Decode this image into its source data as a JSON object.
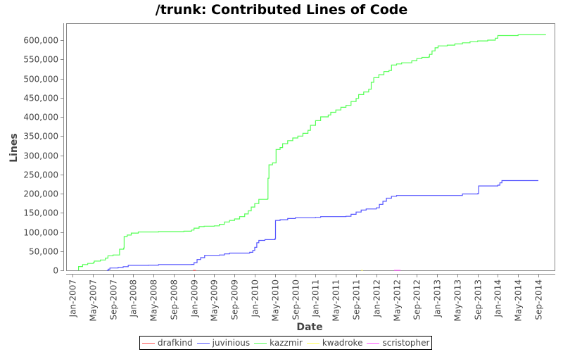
{
  "chart_data": {
    "type": "line",
    "title": "/trunk: Contributed Lines of Code",
    "xlabel": "Date",
    "ylabel": "Lines",
    "ylim": [
      0,
      640000
    ],
    "y_ticks": [
      0,
      50000,
      100000,
      150000,
      200000,
      250000,
      300000,
      350000,
      400000,
      450000,
      500000,
      550000,
      600000
    ],
    "y_tick_labels": [
      "0",
      "50,000",
      "100,000",
      "150,000",
      "200,000",
      "250,000",
      "300,000",
      "350,000",
      "400,000",
      "450,000",
      "500,000",
      "550,000",
      "600,000"
    ],
    "x_ticks": [
      "Jan-2007",
      "May-2007",
      "Sep-2007",
      "Jan-2008",
      "May-2008",
      "Sep-2008",
      "Jan-2009",
      "May-2009",
      "Sep-2009",
      "Jan-2010",
      "May-2010",
      "Sep-2010",
      "Jan-2011",
      "May-2011",
      "Sep-2011",
      "Jan-2012",
      "May-2012",
      "Sep-2012",
      "Jan-2013",
      "May-2013",
      "Sep-2013",
      "Jan-2014",
      "May-2014",
      "Sep-2014"
    ],
    "x_unit": "months since Jan-2007",
    "grid": false,
    "legend_position": "bottom",
    "series": [
      {
        "name": "drafkind",
        "color": "#ff5555",
        "points": [
          [
            23.8,
            0
          ],
          [
            24.3,
            300
          ]
        ]
      },
      {
        "name": "juvinious",
        "color": "#5555ff",
        "points": [
          [
            6.8,
            0
          ],
          [
            7.1,
            3000
          ],
          [
            7.4,
            6000
          ],
          [
            9.0,
            7500
          ],
          [
            10.0,
            9500
          ],
          [
            11.0,
            13000
          ],
          [
            15.0,
            13500
          ],
          [
            17.0,
            15000
          ],
          [
            23.5,
            15500
          ],
          [
            24.0,
            20000
          ],
          [
            24.6,
            28000
          ],
          [
            25.3,
            33000
          ],
          [
            26.1,
            39000
          ],
          [
            29.0,
            40000
          ],
          [
            30.0,
            43000
          ],
          [
            31.0,
            45000
          ],
          [
            35.0,
            47000
          ],
          [
            35.6,
            52000
          ],
          [
            36.0,
            60000
          ],
          [
            36.4,
            72000
          ],
          [
            36.8,
            78000
          ],
          [
            38.0,
            80000
          ],
          [
            40.0,
            83000
          ],
          [
            40.1,
            130000
          ],
          [
            41.0,
            132000
          ],
          [
            42.5,
            135000
          ],
          [
            44.0,
            137000
          ],
          [
            48.0,
            138000
          ],
          [
            49.0,
            140000
          ],
          [
            54.0,
            141000
          ],
          [
            55.0,
            146000
          ],
          [
            56.0,
            152000
          ],
          [
            57.0,
            157000
          ],
          [
            58.0,
            160000
          ],
          [
            60.0,
            163000
          ],
          [
            60.6,
            172000
          ],
          [
            61.3,
            180000
          ],
          [
            62.0,
            188000
          ],
          [
            63.0,
            193000
          ],
          [
            64.0,
            195000
          ],
          [
            76.0,
            195000
          ],
          [
            77.0,
            199000
          ],
          [
            80.0,
            200000
          ],
          [
            80.2,
            220000
          ],
          [
            84.0,
            222000
          ],
          [
            84.4,
            228000
          ],
          [
            84.8,
            234000
          ],
          [
            92.0,
            234000
          ]
        ]
      },
      {
        "name": "kazzmir",
        "color": "#55ff55",
        "points": [
          [
            1.2,
            0
          ],
          [
            1.2,
            10000
          ],
          [
            2.0,
            15000
          ],
          [
            3.0,
            18000
          ],
          [
            4.1,
            20000
          ],
          [
            4.3,
            24000
          ],
          [
            5.5,
            27000
          ],
          [
            6.5,
            32000
          ],
          [
            7.0,
            38000
          ],
          [
            8.0,
            40000
          ],
          [
            9.3,
            43000
          ],
          [
            9.3,
            55000
          ],
          [
            10.1,
            58000
          ],
          [
            10.2,
            88000
          ],
          [
            10.8,
            92000
          ],
          [
            11.6,
            97000
          ],
          [
            13.0,
            100000
          ],
          [
            17.0,
            101000
          ],
          [
            22.0,
            102000
          ],
          [
            23.5,
            105000
          ],
          [
            24.0,
            110000
          ],
          [
            25.0,
            114000
          ],
          [
            26.0,
            115000
          ],
          [
            28.0,
            116000
          ],
          [
            29.0,
            120000
          ],
          [
            30.0,
            126000
          ],
          [
            31.0,
            130000
          ],
          [
            32.0,
            134000
          ],
          [
            33.0,
            140000
          ],
          [
            34.0,
            147000
          ],
          [
            34.7,
            155000
          ],
          [
            35.3,
            165000
          ],
          [
            36.0,
            174000
          ],
          [
            36.8,
            185000
          ],
          [
            38.5,
            186000
          ],
          [
            38.6,
            240000
          ],
          [
            38.8,
            275000
          ],
          [
            39.5,
            280000
          ],
          [
            40.2,
            315000
          ],
          [
            41.0,
            320000
          ],
          [
            41.5,
            330000
          ],
          [
            42.5,
            338000
          ],
          [
            43.5,
            345000
          ],
          [
            44.5,
            350000
          ],
          [
            45.5,
            357000
          ],
          [
            46.5,
            365000
          ],
          [
            47.0,
            378000
          ],
          [
            48.0,
            390000
          ],
          [
            49.0,
            400000
          ],
          [
            50.5,
            405000
          ],
          [
            51.0,
            412000
          ],
          [
            52.0,
            418000
          ],
          [
            53.0,
            425000
          ],
          [
            54.0,
            430000
          ],
          [
            55.0,
            440000
          ],
          [
            56.0,
            448000
          ],
          [
            56.5,
            458000
          ],
          [
            57.5,
            465000
          ],
          [
            58.5,
            472000
          ],
          [
            59.0,
            490000
          ],
          [
            59.5,
            502000
          ],
          [
            60.5,
            510000
          ],
          [
            61.5,
            518000
          ],
          [
            62.5,
            521000
          ],
          [
            63.0,
            535000
          ],
          [
            64.0,
            538000
          ],
          [
            65.0,
            541000
          ],
          [
            67.0,
            546000
          ],
          [
            68.0,
            552000
          ],
          [
            69.0,
            555000
          ],
          [
            70.3,
            556000
          ],
          [
            70.5,
            563000
          ],
          [
            71.0,
            572000
          ],
          [
            71.6,
            580000
          ],
          [
            72.2,
            585000
          ],
          [
            74.0,
            587000
          ],
          [
            75.5,
            590000
          ],
          [
            77.0,
            593000
          ],
          [
            78.5,
            596000
          ],
          [
            80.0,
            598000
          ],
          [
            82.0,
            600000
          ],
          [
            83.5,
            605000
          ],
          [
            84.0,
            612000
          ],
          [
            88.0,
            614000
          ],
          [
            93.5,
            614000
          ]
        ]
      },
      {
        "name": "kwadroke",
        "color": "#ffff55",
        "points": [
          [
            57.0,
            0
          ],
          [
            57.3,
            200
          ]
        ]
      },
      {
        "name": "scristopher",
        "color": "#ff55ff",
        "points": [
          [
            63.5,
            0
          ],
          [
            64.8,
            0
          ]
        ]
      }
    ]
  },
  "legend": {
    "items": [
      {
        "label": "drafkind",
        "color": "#ff5555"
      },
      {
        "label": "juvinious",
        "color": "#5555ff"
      },
      {
        "label": "kazzmir",
        "color": "#55ff55"
      },
      {
        "label": "kwadroke",
        "color": "#ffff55"
      },
      {
        "label": "scristopher",
        "color": "#ff55ff"
      }
    ]
  }
}
